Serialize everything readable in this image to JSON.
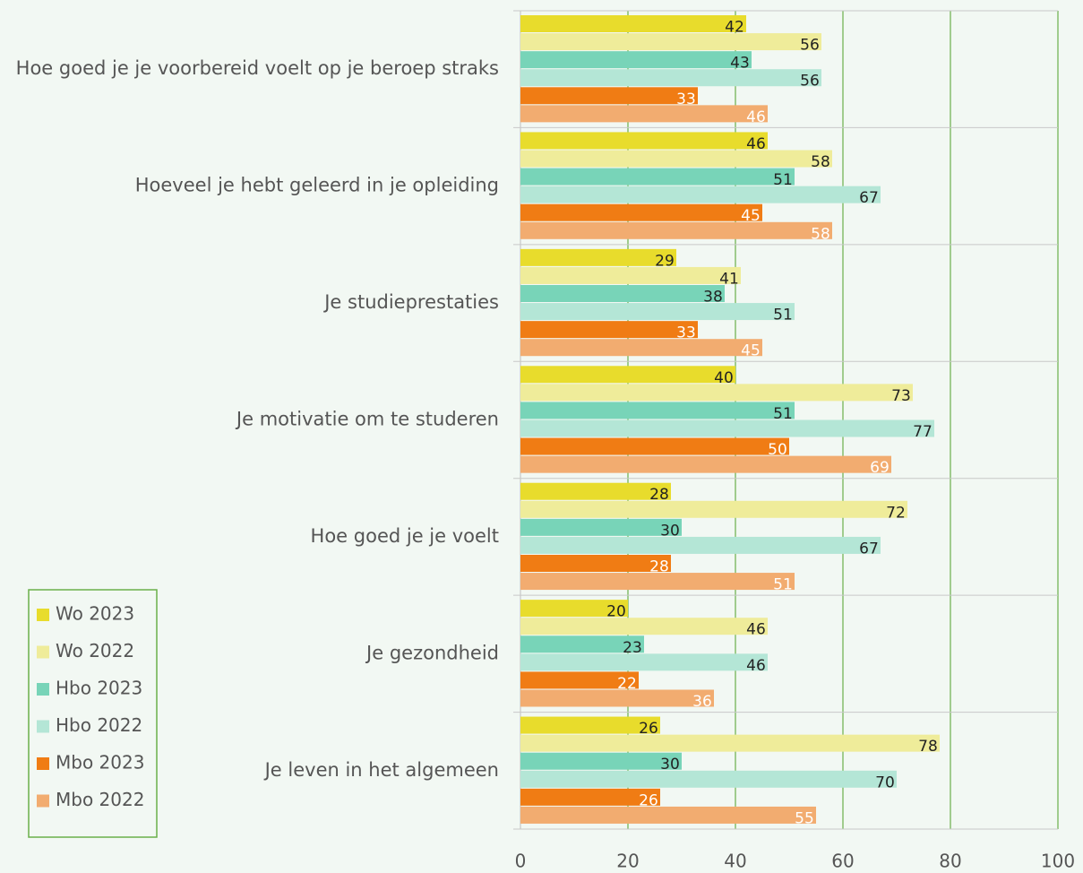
{
  "chart_data": {
    "type": "barh",
    "categories": [
      "Hoe goed je je voorbereid voelt op je beroep straks",
      "Hoeveel je hebt geleerd in je opleiding",
      "Je studieprestaties",
      "Je motivatie om te studeren",
      "Hoe goed je je voelt",
      "Je gezondheid",
      "Je leven in het algemeen"
    ],
    "series": [
      {
        "name": "Wo 2023",
        "color": "#e8dc2c",
        "label_color": "#222222",
        "values": [
          42,
          46,
          29,
          40,
          28,
          20,
          26
        ]
      },
      {
        "name": "Wo 2022",
        "color": "#efec9a",
        "label_color": "#222222",
        "values": [
          56,
          58,
          41,
          73,
          72,
          46,
          78
        ]
      },
      {
        "name": "Hbo 2023",
        "color": "#78d4b8",
        "label_color": "#222222",
        "values": [
          43,
          51,
          38,
          51,
          30,
          23,
          30
        ]
      },
      {
        "name": "Hbo 2022",
        "color": "#b4e6d6",
        "label_color": "#222222",
        "values": [
          56,
          67,
          51,
          77,
          67,
          46,
          70
        ]
      },
      {
        "name": "Mbo 2023",
        "color": "#f07c14",
        "label_color": "#ffffff",
        "values": [
          33,
          45,
          33,
          50,
          28,
          22,
          26
        ]
      },
      {
        "name": "Mbo 2022",
        "color": "#f2ac70",
        "label_color": "#ffffff",
        "values": [
          46,
          58,
          45,
          69,
          51,
          36,
          55
        ]
      }
    ],
    "xlim": [
      0,
      100
    ],
    "xticks": [
      0,
      20,
      40,
      60,
      80,
      100
    ],
    "grid": true,
    "grid_color": "#6ab04a",
    "legend": "lower left"
  }
}
